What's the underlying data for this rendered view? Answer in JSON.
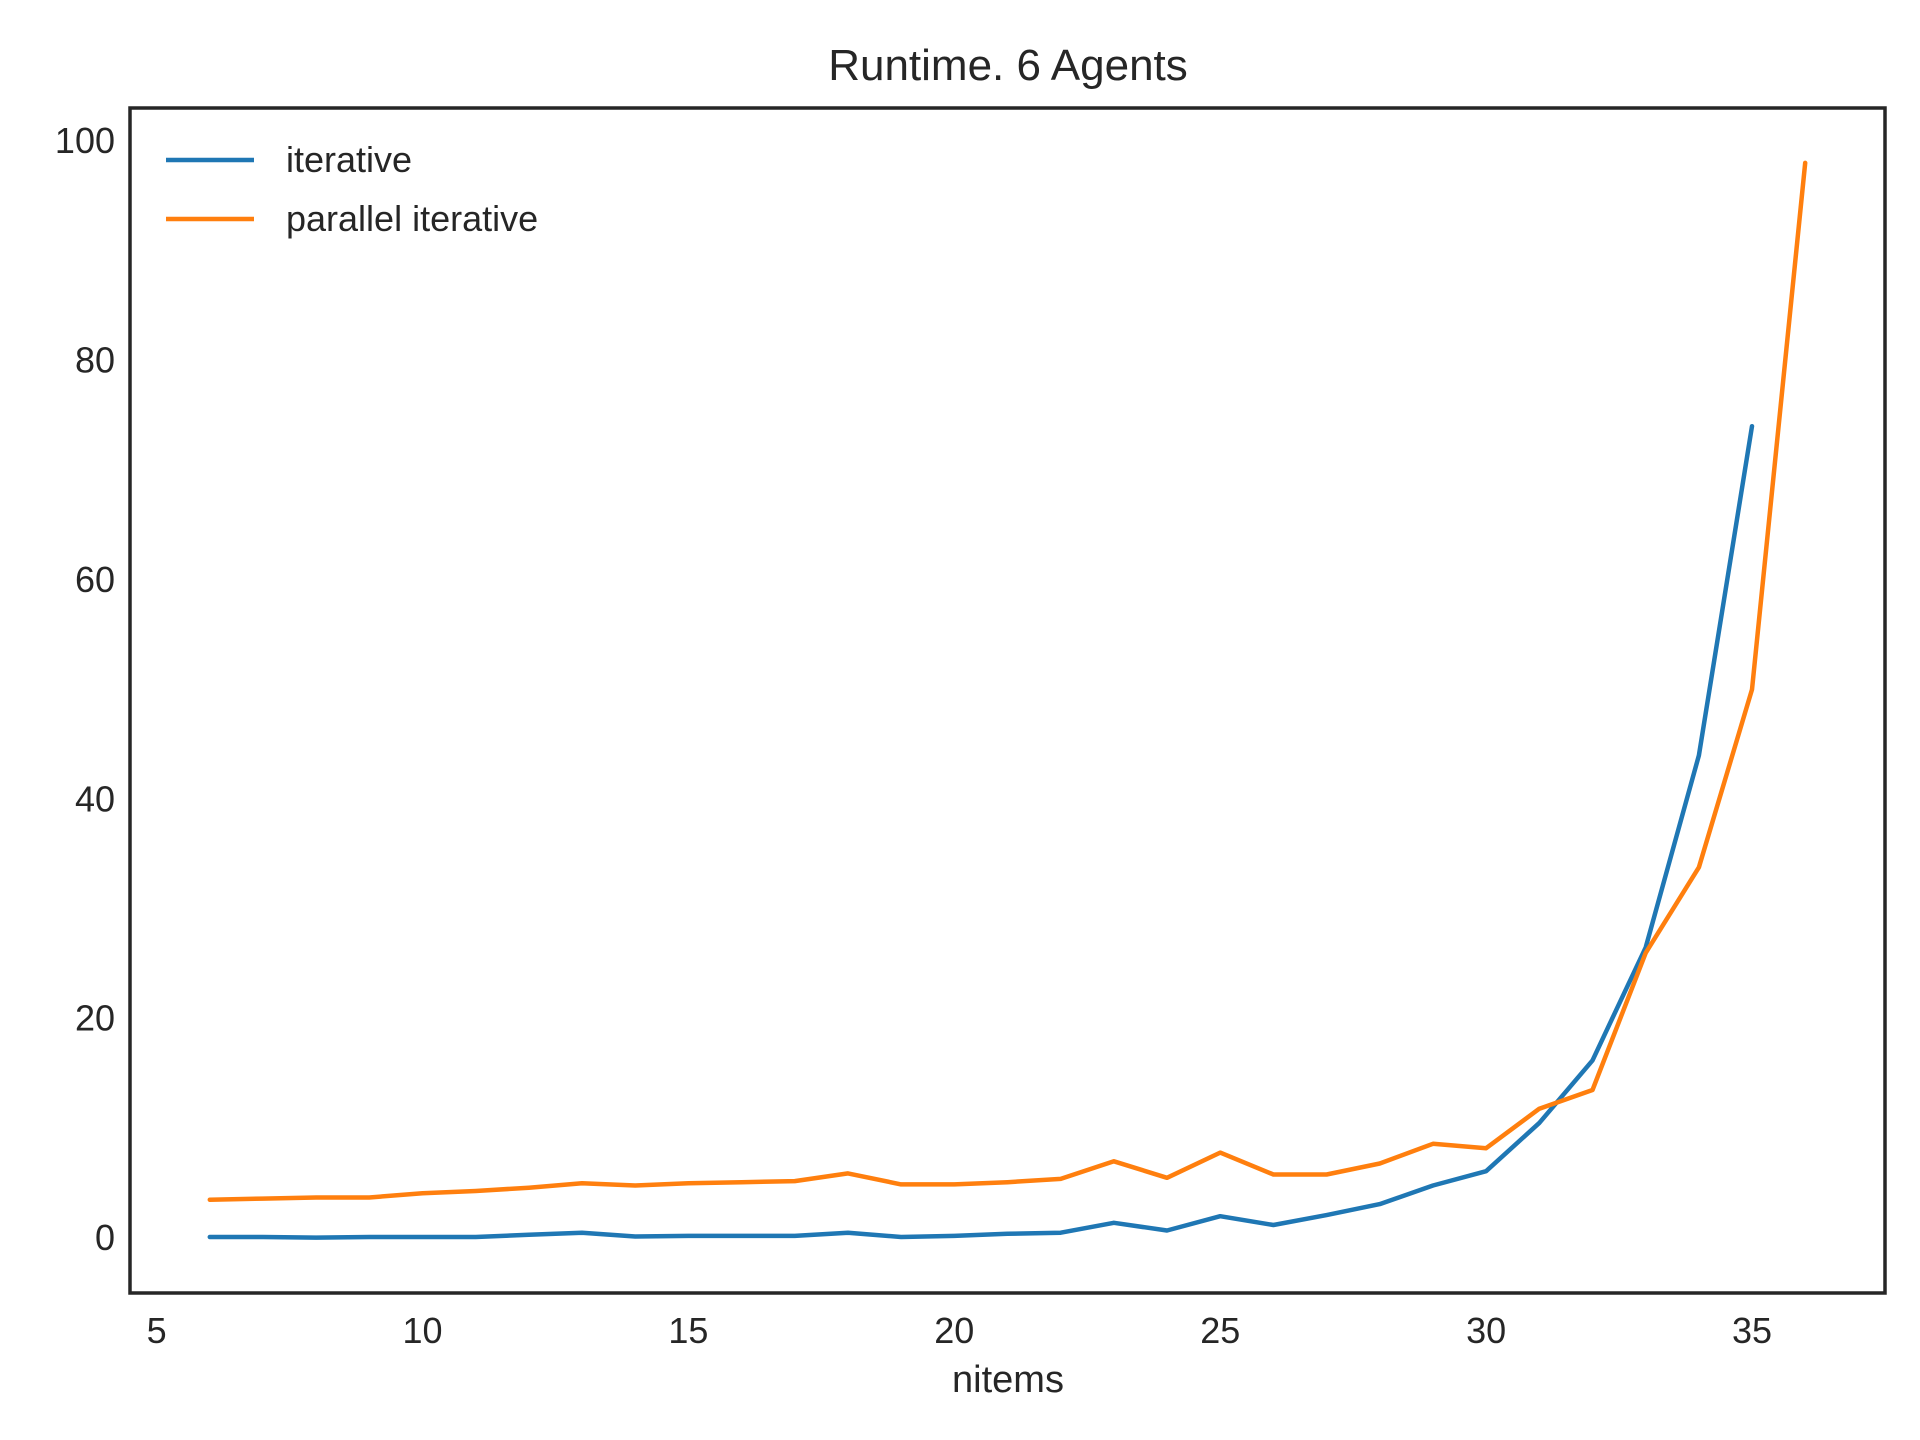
{
  "chart_data": {
    "type": "line",
    "title": "Runtime. 6 Agents",
    "xlabel": "nitems",
    "ylabel": "",
    "xlim": [
      4.5,
      37.5
    ],
    "ylim": [
      -5,
      103
    ],
    "xticks": [
      5,
      10,
      15,
      20,
      25,
      30,
      35
    ],
    "yticks": [
      0,
      20,
      40,
      60,
      80,
      100
    ],
    "grid": false,
    "legend_position": "top-left",
    "series": [
      {
        "name": "iterative",
        "color": "#1f77b4",
        "x": [
          6,
          7,
          8,
          9,
          10,
          11,
          12,
          13,
          14,
          15,
          16,
          17,
          18,
          19,
          20,
          21,
          22,
          23,
          24,
          25,
          26,
          27,
          28,
          29,
          30,
          31,
          32,
          33,
          34,
          35
        ],
        "y": [
          0.1,
          0.1,
          0.05,
          0.1,
          0.1,
          0.1,
          0.3,
          0.5,
          0.15,
          0.2,
          0.2,
          0.2,
          0.5,
          0.1,
          0.2,
          0.4,
          0.5,
          1.4,
          0.7,
          2.0,
          1.2,
          2.1,
          3.1,
          4.8,
          6.1,
          10.5,
          16.2,
          26.5,
          44.0,
          74.0
        ]
      },
      {
        "name": "parallel iterative",
        "color": "#ff7f0e",
        "x": [
          6,
          7,
          8,
          9,
          10,
          11,
          12,
          13,
          14,
          15,
          16,
          17,
          18,
          19,
          20,
          21,
          22,
          23,
          24,
          25,
          26,
          27,
          28,
          29,
          30,
          31,
          32,
          33,
          34,
          35,
          36
        ],
        "y": [
          3.5,
          3.6,
          3.7,
          3.7,
          4.1,
          4.3,
          4.6,
          5.0,
          4.8,
          5.0,
          5.1,
          5.2,
          5.9,
          4.9,
          4.9,
          5.1,
          5.4,
          7.0,
          5.5,
          7.8,
          5.8,
          5.8,
          6.8,
          8.6,
          8.2,
          11.8,
          13.5,
          26.0,
          33.8,
          50.0,
          98.0
        ]
      }
    ]
  }
}
